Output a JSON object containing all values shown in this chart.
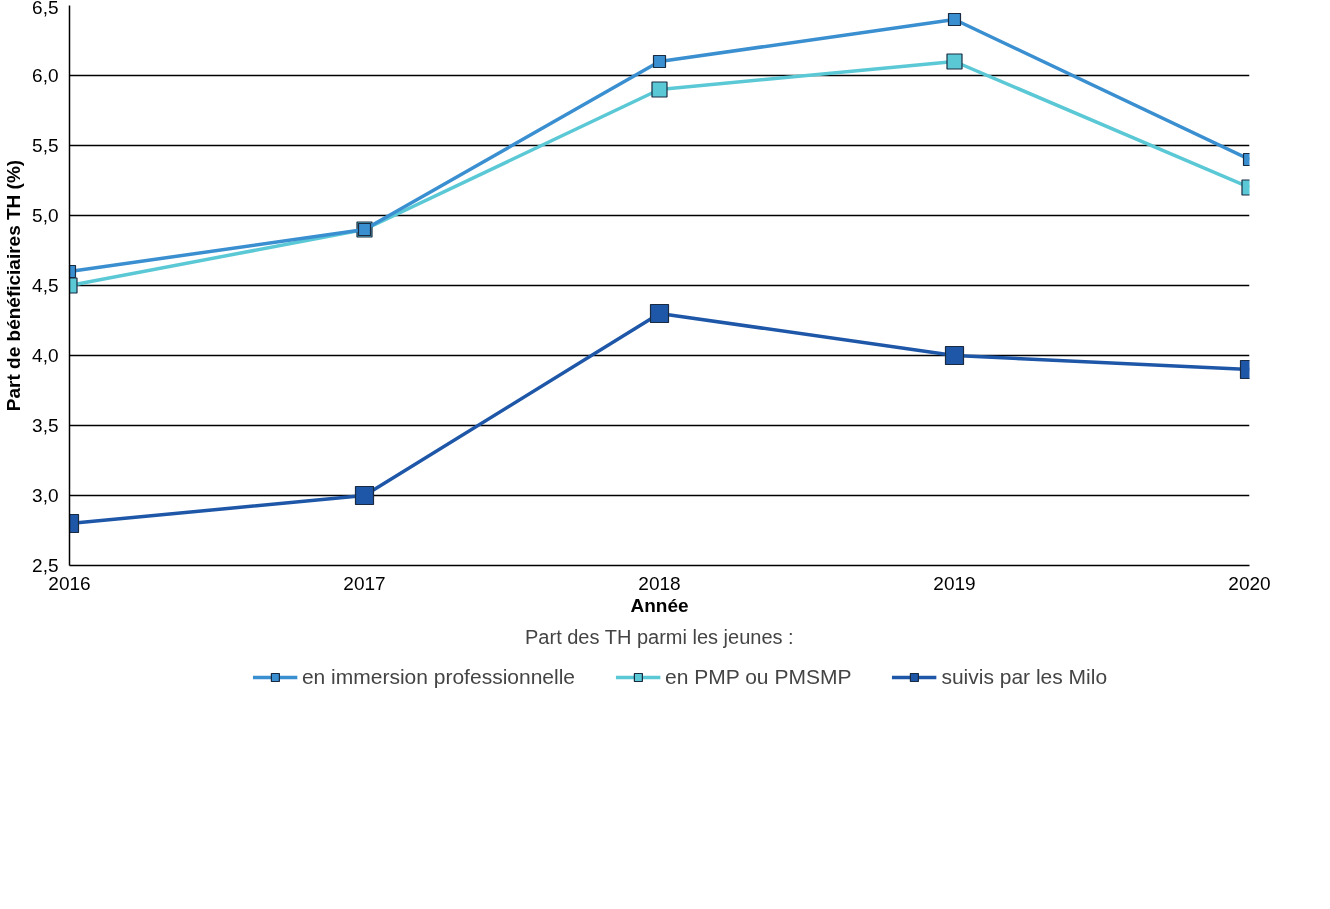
{
  "chart_data": {
    "type": "line",
    "xlabel": "Année",
    "ylabel": "Part de bénéficiaires TH (%)",
    "legend_title": "Part des TH parmi les jeunes :",
    "x": [
      2016,
      2017,
      2018,
      2019,
      2020
    ],
    "xlim": [
      2016,
      2020
    ],
    "xticks": [
      2016,
      2017,
      2018,
      2019,
      2020
    ],
    "ylim": [
      2.5,
      6.5
    ],
    "yticks": [
      {
        "value": 2.5,
        "label": "2,5"
      },
      {
        "value": 3.0,
        "label": "3,0"
      },
      {
        "value": 3.5,
        "label": "3,5"
      },
      {
        "value": 4.0,
        "label": "4,0"
      },
      {
        "value": 4.5,
        "label": "4,5"
      },
      {
        "value": 5.0,
        "label": "5,0"
      },
      {
        "value": 5.5,
        "label": "5,5"
      },
      {
        "value": 6.0,
        "label": "6,0"
      },
      {
        "value": 6.5,
        "label": "6,5"
      }
    ],
    "grid": "y",
    "legend": "bottom",
    "marker": "square",
    "line_style": "solid",
    "series": [
      {
        "name": "en immersion professionnelle",
        "color": "#3a8fd0",
        "values": [
          4.6,
          4.9,
          6.1,
          6.4,
          5.4
        ]
      },
      {
        "name": "en PMP ou PMSMP",
        "color": "#5bc8d6",
        "values": [
          4.5,
          4.9,
          5.9,
          6.1,
          5.2
        ]
      },
      {
        "name": "suivis par les Milo",
        "color": "#1f57a8",
        "values": [
          2.8,
          3.0,
          4.3,
          4.0,
          3.9
        ]
      }
    ]
  }
}
